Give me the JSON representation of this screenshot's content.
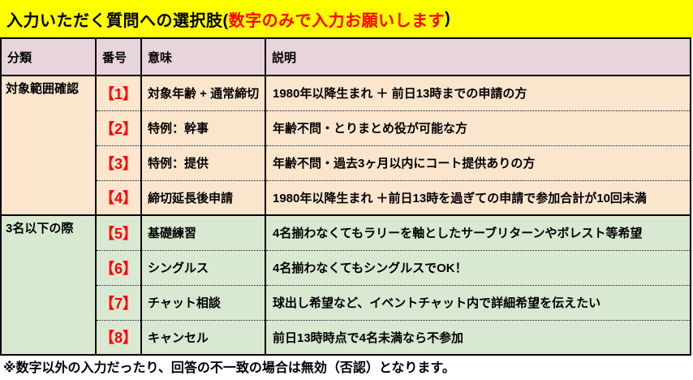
{
  "title": {
    "prefix": "入力いただく質問への選択肢(",
    "highlight": "数字のみで入力お願いします",
    "suffix": ")"
  },
  "colors": {
    "title_bg": "#ffff00",
    "title_highlight": "#ff0000",
    "header_bg": "#e8d4dc",
    "group1_bg": "#fce5cd",
    "group2_bg": "#d9e8d1",
    "number_text": "#ff0000",
    "border": "#000000"
  },
  "table": {
    "headers": [
      "分類",
      "番号",
      "意味",
      "説明"
    ],
    "groups": [
      {
        "category": "対象範囲確認",
        "rows": [
          {
            "num": "【1】",
            "meaning": "対象年齢 + 通常締切",
            "description": "1980年以降生まれ ＋ 前日13時までの申請の方"
          },
          {
            "num": "【2】",
            "meaning": "特例：幹事",
            "description": "年齢不問・とりまとめ役が可能な方"
          },
          {
            "num": "【3】",
            "meaning": "特例：提供",
            "description": "年齢不問・過去3ヶ月以内にコート提供ありの方"
          },
          {
            "num": "【4】",
            "meaning": "締切延長後申請",
            "description": "1980年以降生まれ ＋前日13時を過ぎての申請で参加合計が10回未満"
          }
        ]
      },
      {
        "category": "3名以下の際",
        "rows": [
          {
            "num": "【5】",
            "meaning": "基礎練習",
            "description": "4名揃わなくてもラリーを軸としたサーブリターンやボレスト等希望"
          },
          {
            "num": "【6】",
            "meaning": "シングルス",
            "description": "4名揃わなくてもシングルスでOK！"
          },
          {
            "num": "【7】",
            "meaning": "チャット相談",
            "description": "球出し希望など、イベントチャット内で詳細希望を伝えたい"
          },
          {
            "num": "【8】",
            "meaning": "キャンセル",
            "description": "前日13時時点で4名未満なら不参加"
          }
        ]
      }
    ]
  },
  "footer": {
    "note": "※数字以外の入力だったり、回答の不一致の場合は無効（否認）となります。"
  }
}
